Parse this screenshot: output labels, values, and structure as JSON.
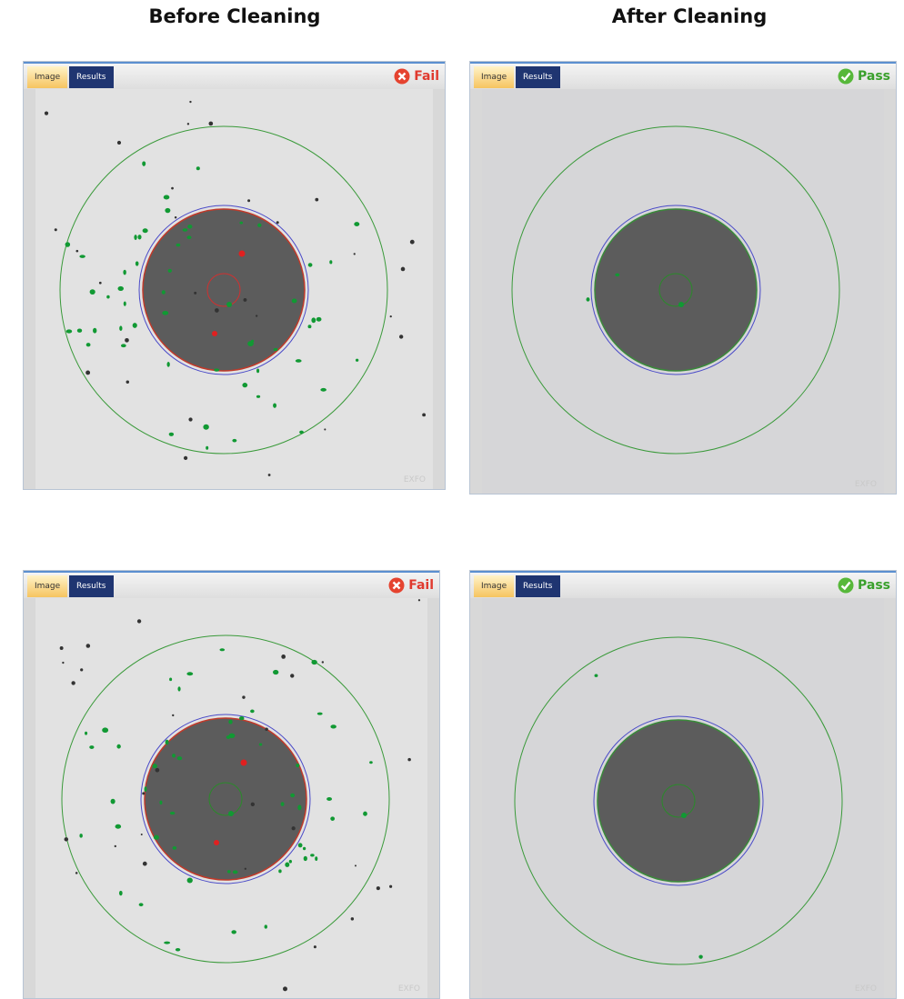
{
  "headers": [
    "Before Cleaning",
    "After Cleaning"
  ],
  "panels": [
    {
      "tabs": [
        "Image",
        "Results"
      ],
      "status": "Fail",
      "watermark": "EXFO"
    },
    {
      "tabs": [
        "Image",
        "Results"
      ],
      "status": "Pass",
      "watermark": "EXFO"
    },
    {
      "tabs": [
        "Image",
        "Results"
      ],
      "status": "Fail",
      "watermark": "EXFO"
    },
    {
      "tabs": [
        "Image",
        "Results"
      ],
      "status": "Pass",
      "watermark": "EXFO"
    }
  ]
}
